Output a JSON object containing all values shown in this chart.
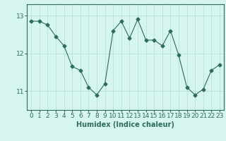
{
  "x": [
    0,
    1,
    2,
    3,
    4,
    5,
    6,
    7,
    8,
    9,
    10,
    11,
    12,
    13,
    14,
    15,
    16,
    17,
    18,
    19,
    20,
    21,
    22,
    23
  ],
  "y": [
    12.85,
    12.85,
    12.75,
    12.45,
    12.2,
    11.65,
    11.55,
    11.1,
    10.9,
    11.2,
    12.6,
    12.85,
    12.4,
    12.9,
    12.35,
    12.35,
    12.2,
    12.6,
    11.95,
    11.1,
    10.9,
    11.05,
    11.55,
    11.7
  ],
  "line_color": "#2d6b5e",
  "marker": "D",
  "marker_size": 2.5,
  "bg_color": "#d6f5f0",
  "grid_color": "#b8e0da",
  "xlabel": "Humidex (Indice chaleur)",
  "xlabel_fontsize": 7,
  "tick_fontsize": 6.5,
  "yticks": [
    11,
    12,
    13
  ],
  "ylim": [
    10.5,
    13.3
  ],
  "xlim": [
    -0.5,
    23.5
  ],
  "xticks": [
    0,
    1,
    2,
    3,
    4,
    5,
    6,
    7,
    8,
    9,
    10,
    11,
    12,
    13,
    14,
    15,
    16,
    17,
    18,
    19,
    20,
    21,
    22,
    23
  ]
}
